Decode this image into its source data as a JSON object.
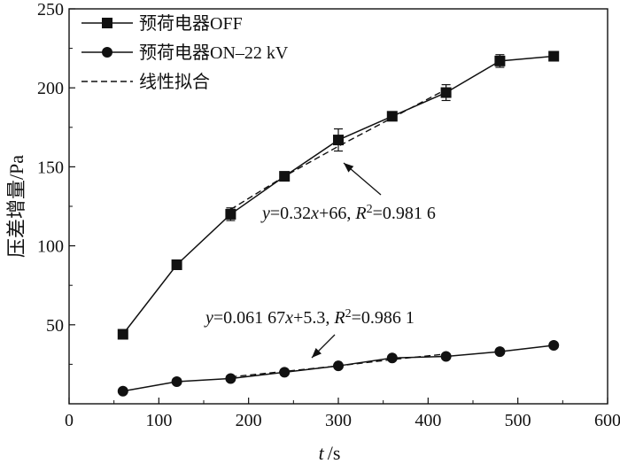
{
  "chart_data": {
    "type": "line",
    "xlabel_italic": "t",
    "xlabel_unit": "/s",
    "ylabel": "压差增量/Pa",
    "xlim": [
      0,
      600
    ],
    "ylim": [
      0,
      250
    ],
    "xticks": [
      0,
      100,
      200,
      300,
      400,
      500,
      600
    ],
    "yticks": [
      50,
      100,
      150,
      200,
      250
    ],
    "grid": false,
    "legend_position": "top-left",
    "series": [
      {
        "name": "预荷电器OFF",
        "marker": "square",
        "x": [
          60,
          120,
          180,
          240,
          300,
          360,
          420,
          480,
          540
        ],
        "y": [
          44,
          88,
          120,
          144,
          167,
          182,
          197,
          217,
          220
        ],
        "error": [
          0,
          0,
          4,
          0,
          7,
          2,
          5,
          4,
          2
        ]
      },
      {
        "name": "预荷电器ON–22 kV",
        "marker": "circle",
        "x": [
          60,
          120,
          180,
          240,
          300,
          360,
          420,
          480,
          540
        ],
        "y": [
          8,
          14,
          16,
          20,
          24,
          29,
          30,
          33,
          37
        ]
      }
    ],
    "fits": [
      {
        "name": "线性拟合",
        "style": "dashed",
        "x": [
          180,
          240,
          300,
          360,
          420
        ],
        "y": [
          123,
          144,
          163,
          181,
          199
        ],
        "equation_parts": [
          "y",
          "=0.32",
          "x",
          "+66, ",
          "R",
          "2",
          "=0.981 6"
        ]
      },
      {
        "style": "dashed",
        "x": [
          180,
          240,
          300,
          360,
          420
        ],
        "y": [
          17,
          20.5,
          24,
          28,
          31.5
        ],
        "equation_parts": [
          "y",
          "=0.061 67",
          "x",
          "+5.3, ",
          "R",
          "2",
          "=0.986 1"
        ]
      }
    ]
  }
}
